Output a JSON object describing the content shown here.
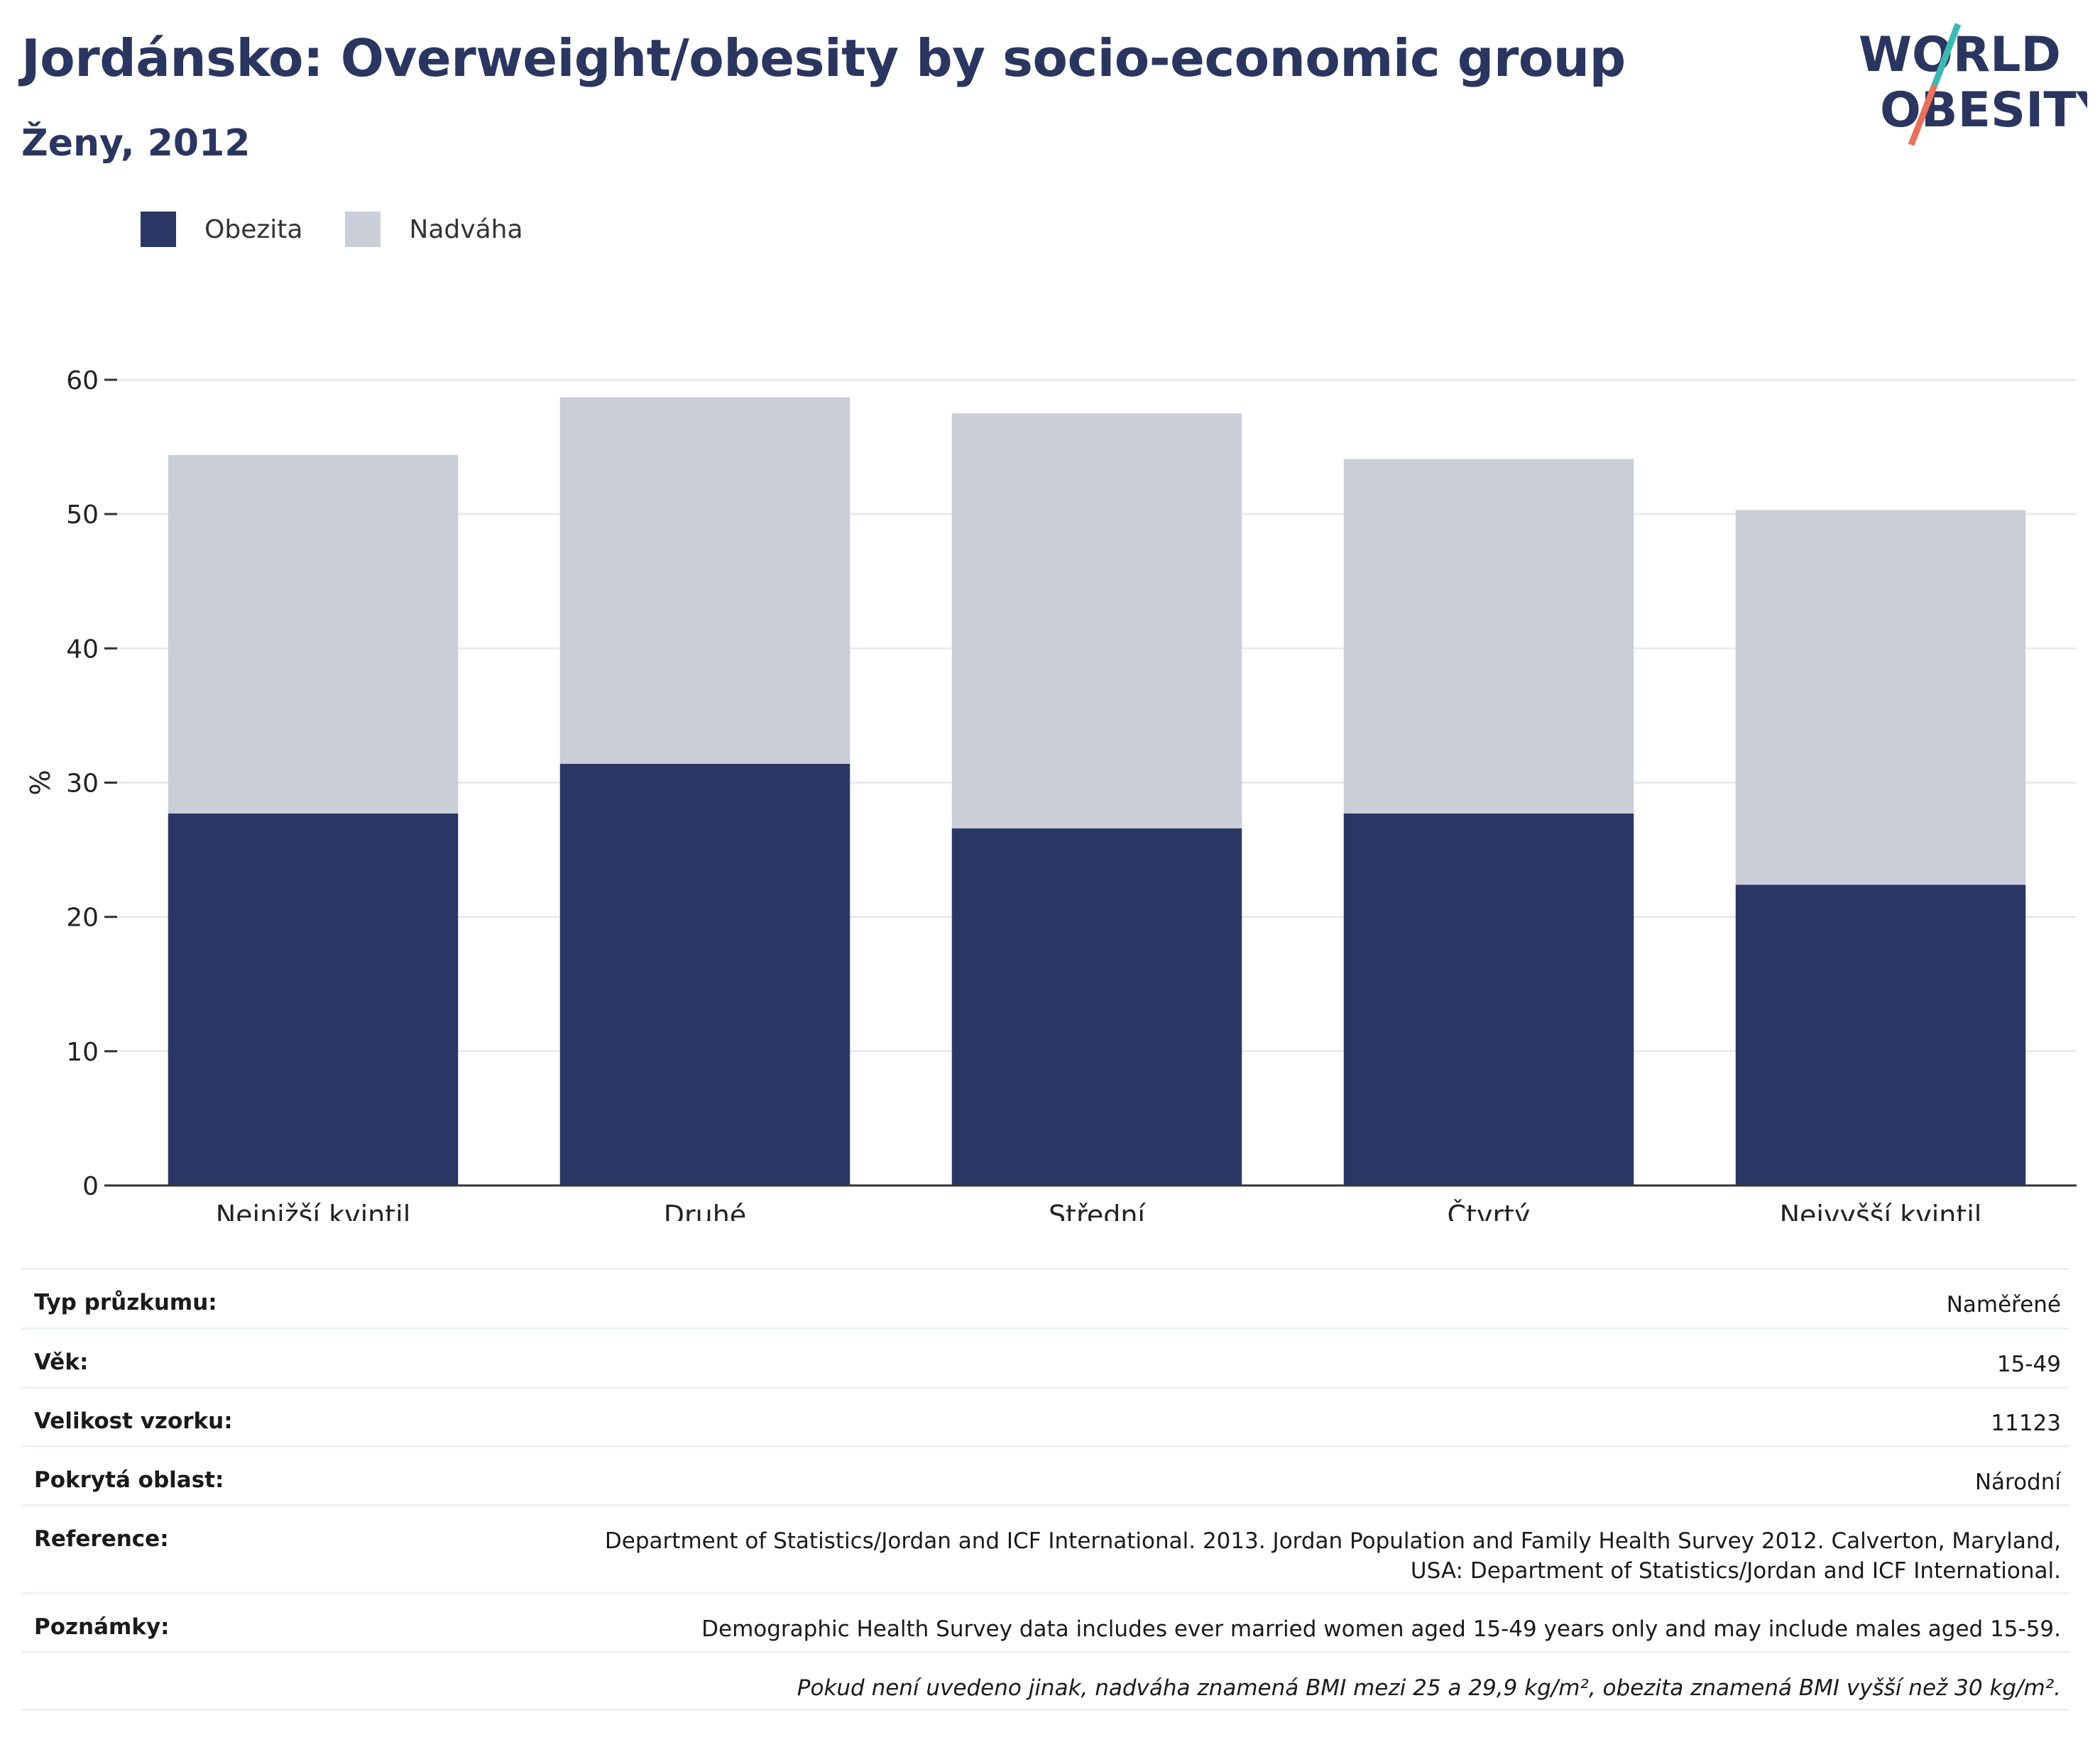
{
  "title": "Jordánsko: Overweight/obesity by socio-economic group",
  "subtitle": "Ženy, 2012",
  "logo": {
    "line1": "WORLD",
    "line2": "OBESITY"
  },
  "colors": {
    "obesity": "#2a3764",
    "overweight": "#cbcdd8",
    "title": "#2a3560",
    "logo_teal": "#3cb9b3",
    "logo_red": "#e8705c"
  },
  "legend": [
    {
      "label": "Obezita",
      "color": "#2a3764"
    },
    {
      "label": "Nadváha",
      "color": "#cbcdd8"
    }
  ],
  "chart_data": {
    "type": "bar",
    "stacked": true,
    "categories": [
      "Nejnižší kvintil",
      "Druhé",
      "Střední",
      "Čtvrtý",
      "Nejvyšší kvintil"
    ],
    "series": [
      {
        "name": "Obezita",
        "values": [
          27.7,
          31.4,
          26.6,
          27.7,
          22.4
        ]
      },
      {
        "name": "Nadváha",
        "values": [
          26.7,
          27.3,
          30.9,
          26.4,
          27.9
        ]
      }
    ],
    "ylabel": "%",
    "ylim": [
      0,
      60
    ],
    "yticks": [
      0,
      10,
      20,
      30,
      40,
      50,
      60
    ],
    "grid": true
  },
  "meta": [
    {
      "key": "Typ průzkumu:",
      "value": "Naměřené"
    },
    {
      "key": "Věk:",
      "value": "15-49"
    },
    {
      "key": "Velikost vzorku:",
      "value": "11123"
    },
    {
      "key": "Pokrytá oblast:",
      "value": "Národní"
    },
    {
      "key": "Reference:",
      "value": "Department of Statistics/Jordan and ICF International. 2013. Jordan Population and Family Health Survey 2012. Calverton, Maryland,",
      "value2": "USA: Department of Statistics/Jordan and ICF International."
    },
    {
      "key": "Poznámky:",
      "value": "Demographic Health Survey data includes ever married women aged 15-49 years only and may include males aged 15-59."
    }
  ],
  "footnote": "Pokud není uvedeno jinak, nadváha znamená BMI mezi 25 a 29,9 kg/m², obezita znamená BMI vyšší než 30 kg/m²."
}
